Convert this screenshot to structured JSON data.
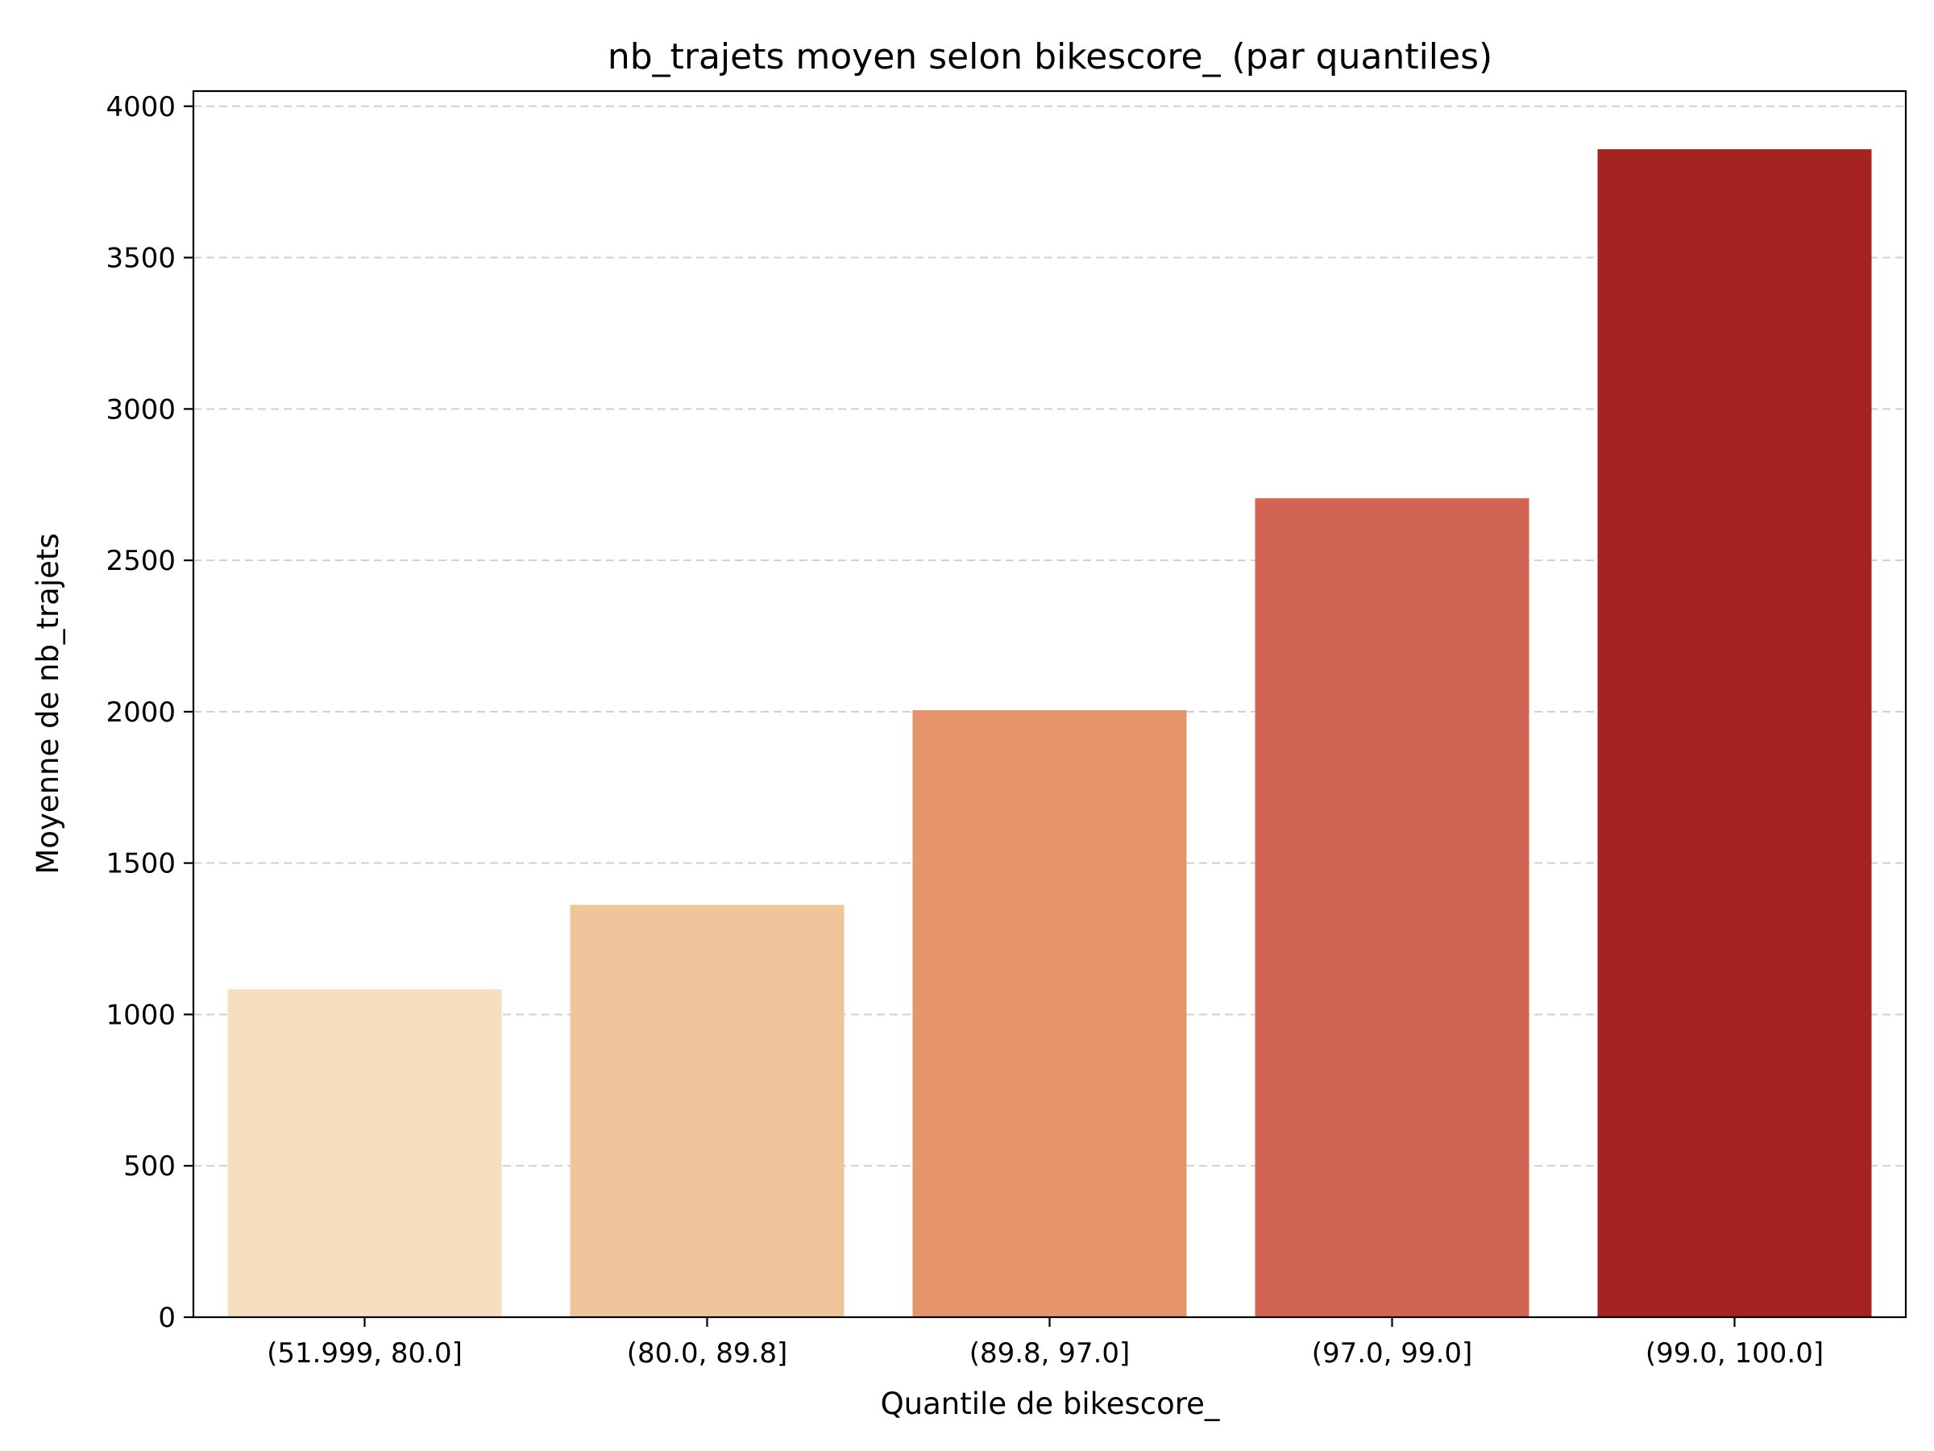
{
  "chart_data": {
    "type": "bar",
    "title": "nb_trajets moyen selon bikescore_ (par quantiles)",
    "xlabel": "Quantile de bikescore_",
    "ylabel": "Moyenne de nb_trajets",
    "categories": [
      "(51.999, 80.0]",
      "(80.0, 89.8]",
      "(89.8, 97.0]",
      "(97.0, 99.0]",
      "(99.0, 100.0]"
    ],
    "values": [
      1083,
      1362,
      2005,
      2705,
      3858
    ],
    "colors": [
      "#f5dfc0",
      "#efc59b",
      "#e5946c",
      "#d16452",
      "#a52421"
    ],
    "ylim": [
      0,
      4050
    ],
    "yticks": [
      0,
      500,
      1000,
      1500,
      2000,
      2500,
      3000,
      3500,
      4000
    ],
    "grid": "y-dashed",
    "legend": "none"
  }
}
